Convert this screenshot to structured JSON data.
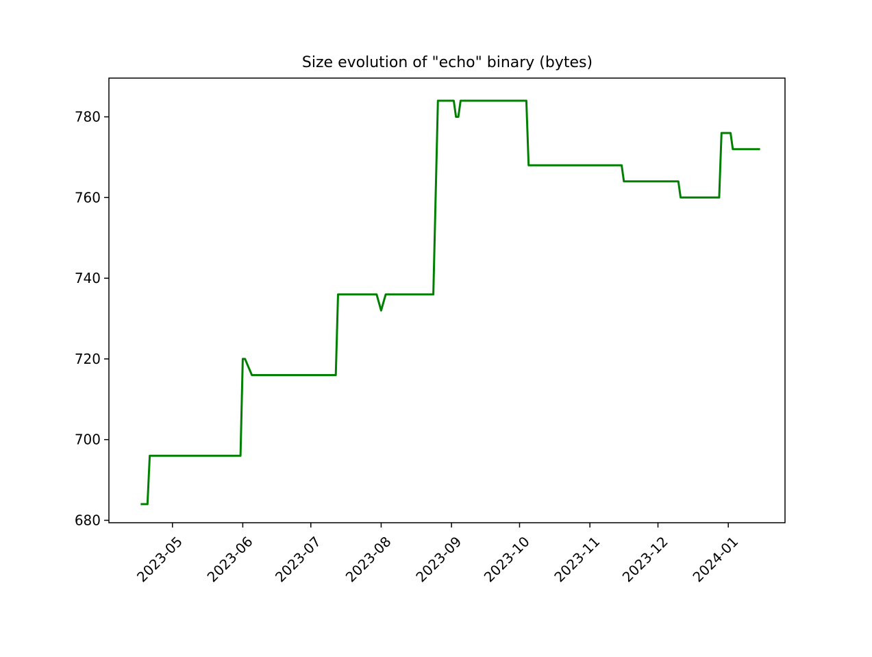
{
  "chart_data": {
    "type": "line",
    "title": "Size evolution of \"echo\" binary (bytes)",
    "xlabel": "",
    "ylabel": "",
    "x_ticks": [
      "2023-05",
      "2023-06",
      "2023-07",
      "2023-08",
      "2023-09",
      "2023-10",
      "2023-11",
      "2023-12",
      "2024-01"
    ],
    "y_ticks": [
      680,
      700,
      720,
      740,
      760,
      780
    ],
    "xlim": [
      "2023-04-03",
      "2024-01-26"
    ],
    "ylim": [
      679.4,
      789.6
    ],
    "grid": false,
    "series": [
      {
        "color": "#008000",
        "points": [
          [
            "2023-04-17",
            684
          ],
          [
            "2023-04-20",
            684
          ],
          [
            "2023-04-21",
            696
          ],
          [
            "2023-05-31",
            696
          ],
          [
            "2023-06-01",
            720
          ],
          [
            "2023-06-02",
            720
          ],
          [
            "2023-06-05",
            716
          ],
          [
            "2023-07-12",
            716
          ],
          [
            "2023-07-13",
            736
          ],
          [
            "2023-07-30",
            736
          ],
          [
            "2023-08-01",
            732
          ],
          [
            "2023-08-03",
            736
          ],
          [
            "2023-08-24",
            736
          ],
          [
            "2023-08-26",
            784
          ],
          [
            "2023-09-02",
            784
          ],
          [
            "2023-09-03",
            780
          ],
          [
            "2023-09-04",
            780
          ],
          [
            "2023-09-05",
            784
          ],
          [
            "2023-10-04",
            784
          ],
          [
            "2023-10-05",
            768
          ],
          [
            "2023-11-15",
            768
          ],
          [
            "2023-11-16",
            764
          ],
          [
            "2023-12-10",
            764
          ],
          [
            "2023-12-11",
            760
          ],
          [
            "2023-12-28",
            760
          ],
          [
            "2023-12-29",
            776
          ],
          [
            "2024-01-02",
            776
          ],
          [
            "2024-01-03",
            772
          ],
          [
            "2024-01-15",
            772
          ]
        ]
      }
    ]
  }
}
